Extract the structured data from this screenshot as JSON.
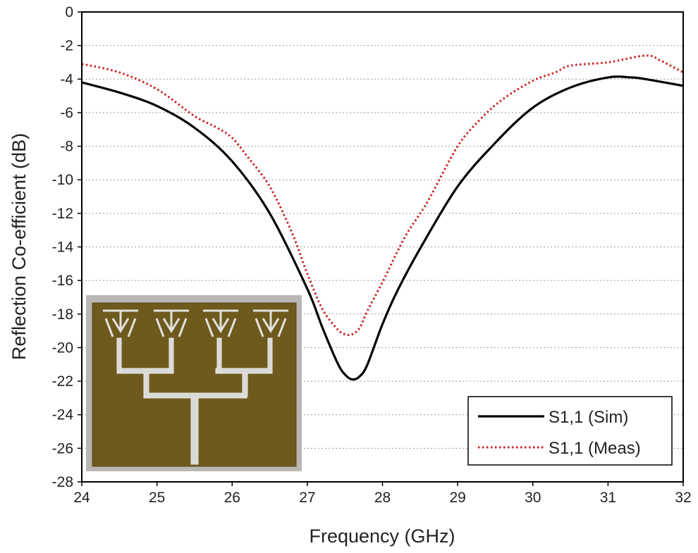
{
  "chart_data": {
    "type": "line",
    "title": "",
    "xlabel": "Frequency (GHz)",
    "ylabel": "Reflection Co-efficient (dB)",
    "xlim": [
      24,
      32
    ],
    "ylim": [
      -28,
      0
    ],
    "xticks": [
      24,
      25,
      26,
      27,
      28,
      29,
      30,
      31,
      32
    ],
    "yticks": [
      0,
      -2,
      -4,
      -6,
      -8,
      -10,
      -12,
      -14,
      -16,
      -18,
      -20,
      -22,
      -24,
      -26,
      -28
    ],
    "grid": "horizontal dotted",
    "legend": "bottom-right",
    "series": [
      {
        "name": "S1,1 (Sim)",
        "style": "solid",
        "color": "#000000",
        "x": [
          24.0,
          24.5,
          25.0,
          25.5,
          26.0,
          26.5,
          27.0,
          27.2,
          27.4,
          27.5,
          27.6,
          27.7,
          27.8,
          28.0,
          28.2,
          28.5,
          29.0,
          29.5,
          30.0,
          30.5,
          31.0,
          31.3,
          31.5,
          32.0
        ],
        "y": [
          -4.2,
          -4.8,
          -5.6,
          -6.9,
          -8.9,
          -12.0,
          -16.5,
          -18.8,
          -20.9,
          -21.6,
          -21.9,
          -21.7,
          -21.0,
          -18.6,
          -16.6,
          -14.1,
          -10.4,
          -7.8,
          -5.7,
          -4.5,
          -3.9,
          -3.9,
          -4.0,
          -4.4
        ]
      },
      {
        "name": "S1,1 (Meas)",
        "style": "dotted",
        "color": "#cc2222",
        "x": [
          24.0,
          24.5,
          25.0,
          25.5,
          25.8,
          26.0,
          26.2,
          26.5,
          26.8,
          27.0,
          27.2,
          27.4,
          27.5,
          27.6,
          27.7,
          27.8,
          28.0,
          28.3,
          28.6,
          29.0,
          29.3,
          29.6,
          30.0,
          30.3,
          30.5,
          31.0,
          31.5,
          31.7,
          32.0
        ],
        "y": [
          -3.1,
          -3.6,
          -4.6,
          -6.2,
          -6.9,
          -7.5,
          -8.6,
          -10.4,
          -13.2,
          -15.6,
          -17.7,
          -18.9,
          -19.2,
          -19.2,
          -18.8,
          -17.8,
          -16.1,
          -13.4,
          -11.3,
          -8.0,
          -6.4,
          -5.2,
          -4.1,
          -3.6,
          -3.2,
          -3.0,
          -2.6,
          -2.9,
          -3.6
        ]
      }
    ],
    "inset": "photograph of the fabricated 1x4 array antenna on PCB"
  }
}
